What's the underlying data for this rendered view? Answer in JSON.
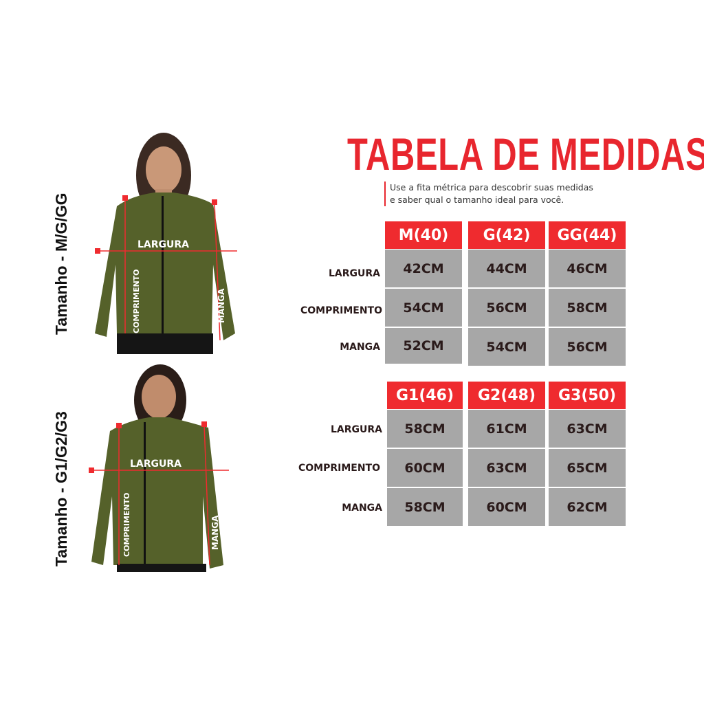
{
  "title": "TABELA DE MEDIDAS",
  "subtitle_line1": "Use a fita métrica para descobrir suas medidas",
  "subtitle_line2": "e saber qual o tamanho ideal para você.",
  "colors": {
    "accent": "#ef2b2f",
    "cell": "#a7a7a7",
    "jacket": "#55612a"
  },
  "models": [
    {
      "side_label": "Tamanho - M/G/GG",
      "largura": "LARGURA",
      "comprimento": "COMPRIMENTO",
      "manga": "MANGA"
    },
    {
      "side_label": "Tamanho - G1/G2/G3",
      "largura": "LARGURA",
      "comprimento": "COMPRIMENTO",
      "manga": "MANGA"
    }
  ],
  "tables": [
    {
      "headers": [
        "M(40)",
        "G(42)",
        "GG(44)"
      ],
      "rows": [
        {
          "label": "LARGURA",
          "values": [
            "42CM",
            "44CM",
            "46CM"
          ]
        },
        {
          "label": "COMPRIMENTO",
          "values": [
            "54CM",
            "56CM",
            "58CM"
          ]
        },
        {
          "label": "MANGA",
          "values": [
            "52CM",
            "54CM",
            "56CM"
          ]
        }
      ]
    },
    {
      "headers": [
        "G1(46)",
        "G2(48)",
        "G3(50)"
      ],
      "rows": [
        {
          "label": "LARGURA",
          "values": [
            "58CM",
            "61CM",
            "63CM"
          ]
        },
        {
          "label": "COMPRIMENTO",
          "values": [
            "60CM",
            "63CM",
            "65CM"
          ]
        },
        {
          "label": "MANGA",
          "values": [
            "58CM",
            "60CM",
            "62CM"
          ]
        }
      ]
    }
  ]
}
